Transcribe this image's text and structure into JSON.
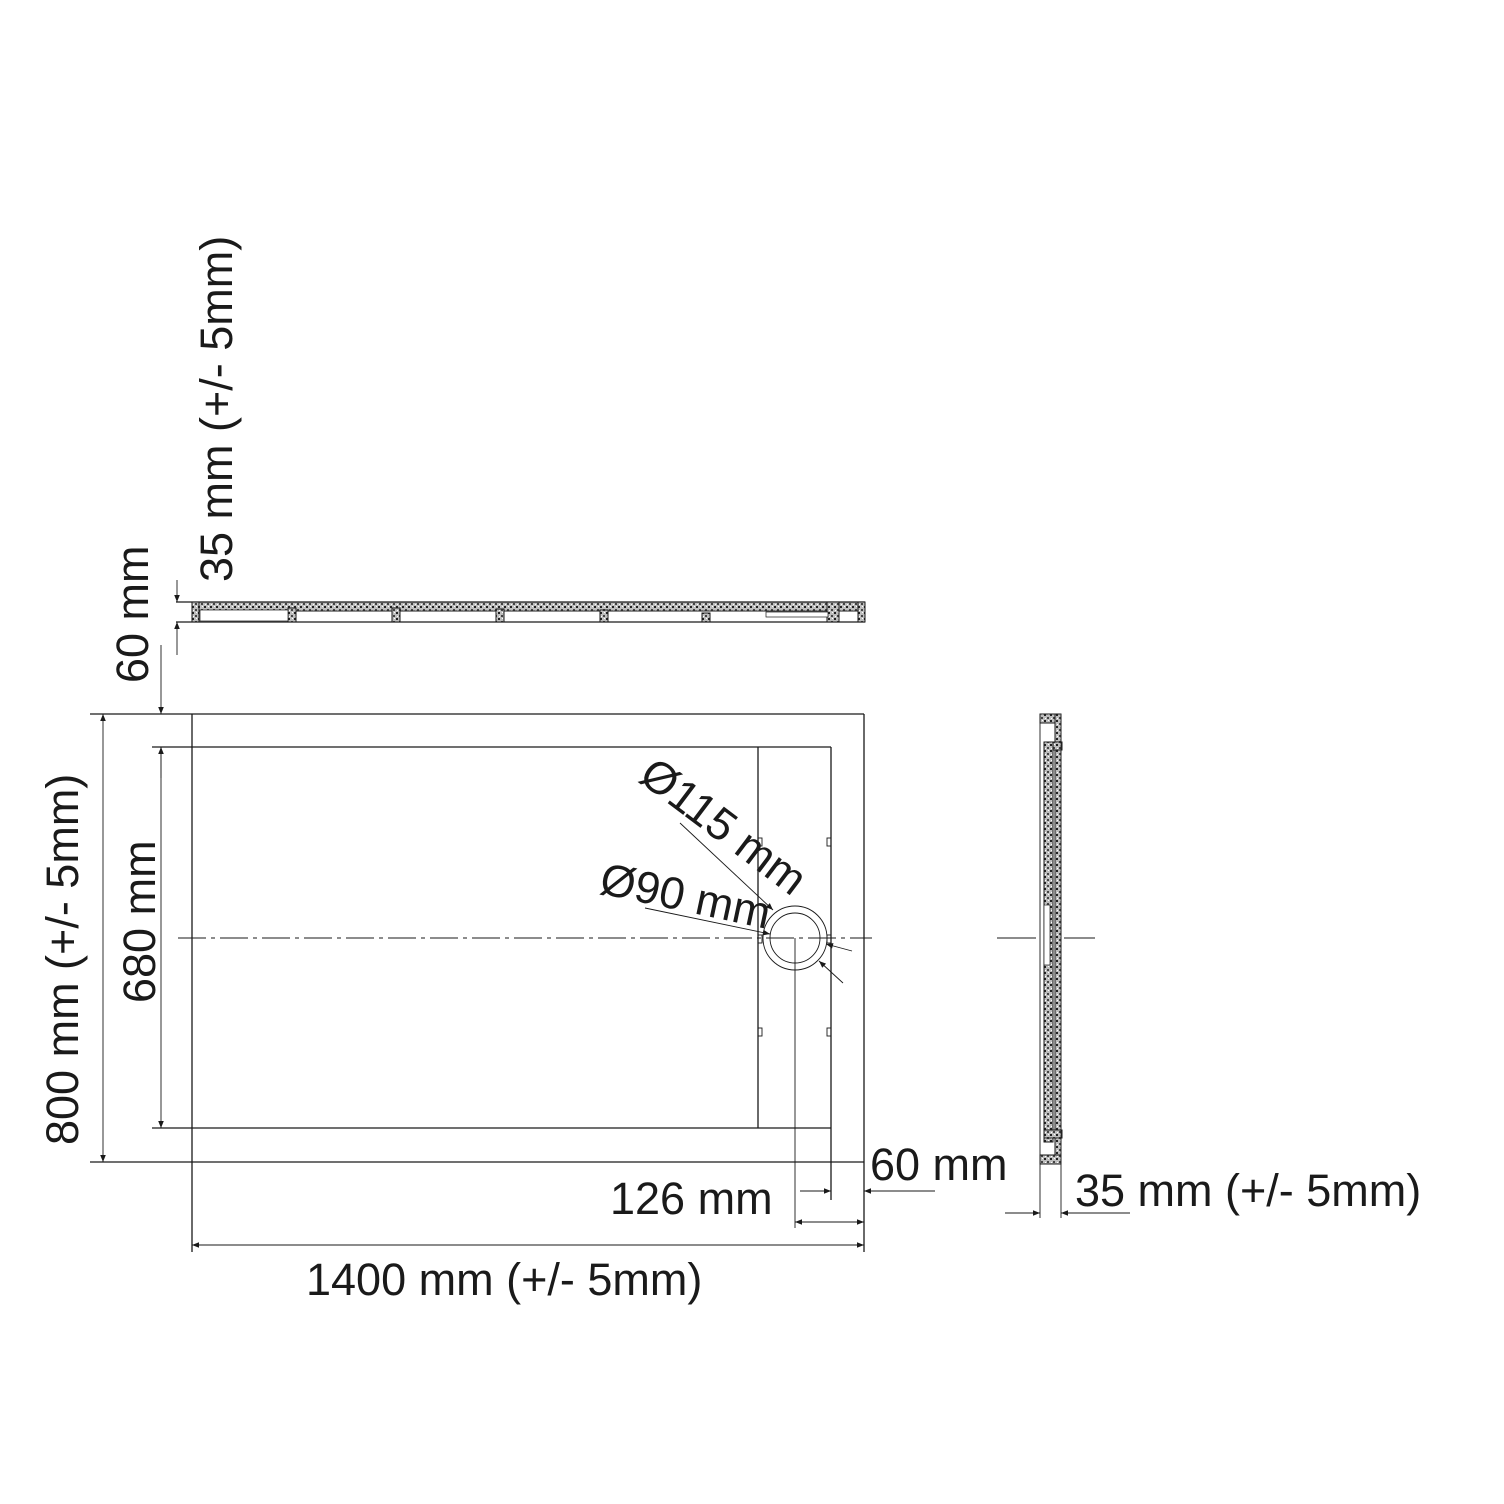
{
  "drawing": {
    "labels": {
      "rim_height": "35 mm (+/- 5mm)",
      "total_height": "60 mm",
      "width_overall": "800 mm (+/- 5mm)",
      "width_inner": "680 mm",
      "outer_drain_diameter": "Ø115 mm",
      "inner_drain_diameter": "Ø90 mm",
      "rim_side": "60 mm",
      "drain_offset": "126 mm",
      "length_overall": "1400 mm (+/- 5mm)",
      "side_thickness": "35 mm (+/- 5mm)"
    },
    "line_color": "#1a1a1a",
    "background": "#ffffff"
  }
}
